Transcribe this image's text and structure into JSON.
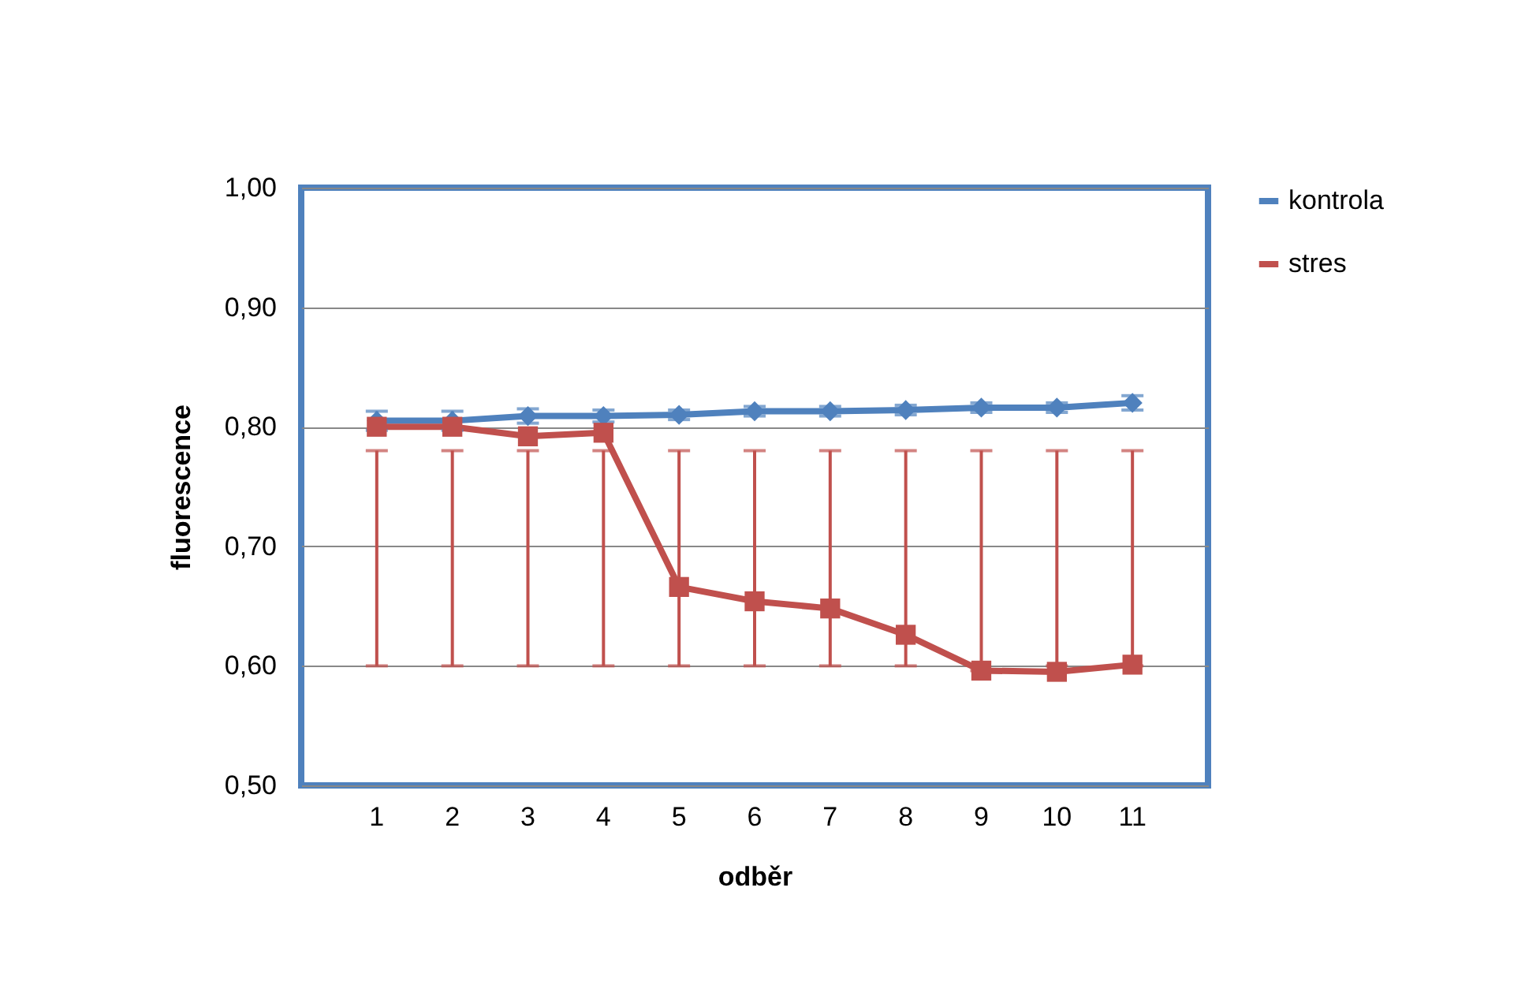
{
  "chart_data": {
    "type": "line",
    "xlabel": "odběr",
    "ylabel": "fluorescence",
    "categories": [
      "1",
      "2",
      "3",
      "4",
      "5",
      "6",
      "7",
      "8",
      "9",
      "10",
      "11"
    ],
    "series": [
      {
        "name": "kontrola",
        "color": "#4f81bd",
        "marker": "diamond",
        "values": [
          0.805,
          0.805,
          0.809,
          0.809,
          0.81,
          0.813,
          0.813,
          0.814,
          0.816,
          0.816,
          0.82
        ],
        "errors": [
          0.008,
          0.008,
          0.006,
          0.005,
          0.004,
          0.004,
          0.004,
          0.004,
          0.004,
          0.004,
          0.006
        ]
      },
      {
        "name": "stres",
        "color": "#c0504d",
        "marker": "square",
        "values": [
          0.8,
          0.8,
          0.792,
          0.795,
          0.666,
          0.654,
          0.648,
          0.626,
          0.596,
          0.595,
          0.601
        ],
        "errors": [
          [
            0.6,
            0.78
          ],
          [
            0.6,
            0.78
          ],
          [
            0.6,
            0.78
          ],
          [
            0.6,
            0.78
          ],
          [
            0.6,
            0.78
          ],
          [
            0.6,
            0.78
          ],
          [
            0.6,
            0.78
          ],
          [
            0.6,
            0.78
          ],
          [
            0.596,
            0.78
          ],
          [
            0.6,
            0.78
          ],
          [
            0.6,
            0.78
          ]
        ]
      }
    ],
    "ylim": [
      0.5,
      1.0
    ],
    "yticks": [
      {
        "value": 0.5,
        "label": "0,50"
      },
      {
        "value": 0.6,
        "label": "0,60"
      },
      {
        "value": 0.7,
        "label": "0,70"
      },
      {
        "value": 0.8,
        "label": "0,80"
      },
      {
        "value": 0.9,
        "label": "0,90"
      },
      {
        "value": 1.0,
        "label": "1,00"
      }
    ],
    "grid": "y",
    "legend": "right",
    "line_style": "solid"
  }
}
